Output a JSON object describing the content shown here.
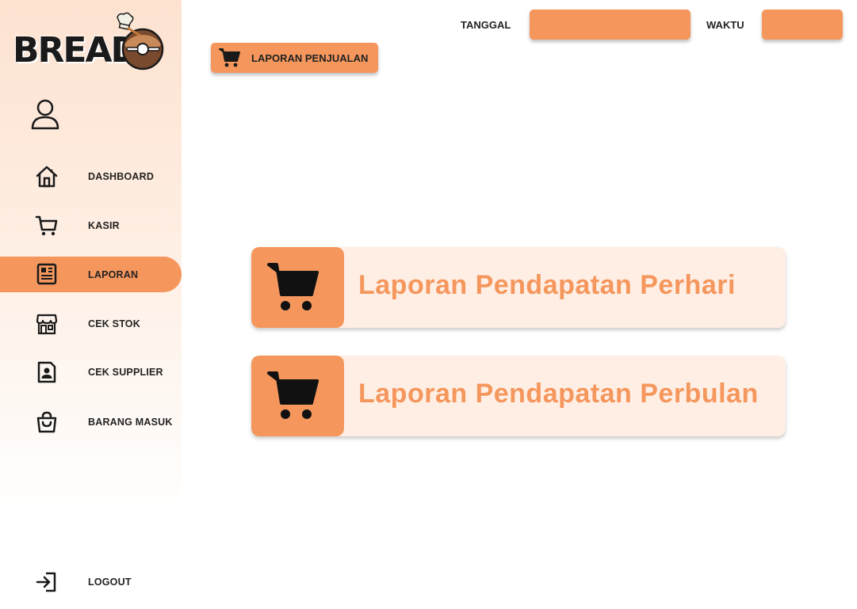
{
  "brand": {
    "logo_text": "BREAD"
  },
  "header": {
    "date_label": "TANGGAL",
    "date_value": "",
    "time_label": "WAKTU",
    "time_value": ""
  },
  "section_chip": {
    "label": "LAPORAN PENJUALAN",
    "icon": "cart-icon"
  },
  "sidebar": {
    "items": [
      {
        "label": "DASHBOARD",
        "icon": "home-icon",
        "active": false
      },
      {
        "label": "KASIR",
        "icon": "cart-icon",
        "active": false
      },
      {
        "label": "LAPORAN",
        "icon": "report-icon",
        "active": true
      },
      {
        "label": "CEK STOK",
        "icon": "store-icon",
        "active": false
      },
      {
        "label": "CEK SUPPLIER",
        "icon": "contact-icon",
        "active": false
      },
      {
        "label": "BARANG MASUK",
        "icon": "bag-icon",
        "active": false
      }
    ],
    "logout_label": "LOGOUT"
  },
  "cards": [
    {
      "title": "Laporan Pendapatan Perhari",
      "icon": "cart-icon"
    },
    {
      "title": "Laporan Pendapatan Perbulan",
      "icon": "cart-icon"
    }
  ],
  "colors": {
    "accent": "#f5975d",
    "card_bg": "#feeee4",
    "sidebar_top": "#fde2d0"
  }
}
